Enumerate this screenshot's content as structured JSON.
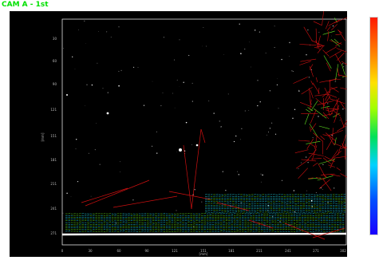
{
  "camera_title": "CAM A - 1st",
  "y_axis": {
    "label": "[mm]",
    "ticks": [
      "30",
      "60",
      "90",
      "121",
      "151",
      "181",
      "211",
      "241",
      "271"
    ]
  },
  "x_axis": {
    "label": "[mm]",
    "ticks": [
      "0",
      "30",
      "60",
      "90",
      "121",
      "151",
      "181",
      "211",
      "241",
      "271",
      "302"
    ]
  },
  "colorbar": {
    "note": ""
  },
  "colors": {
    "title": "#00e000",
    "vector_red": "#d01010",
    "vector_green": "#60e020",
    "vector_cyan": "#20d0e0",
    "background": "#000000"
  }
}
